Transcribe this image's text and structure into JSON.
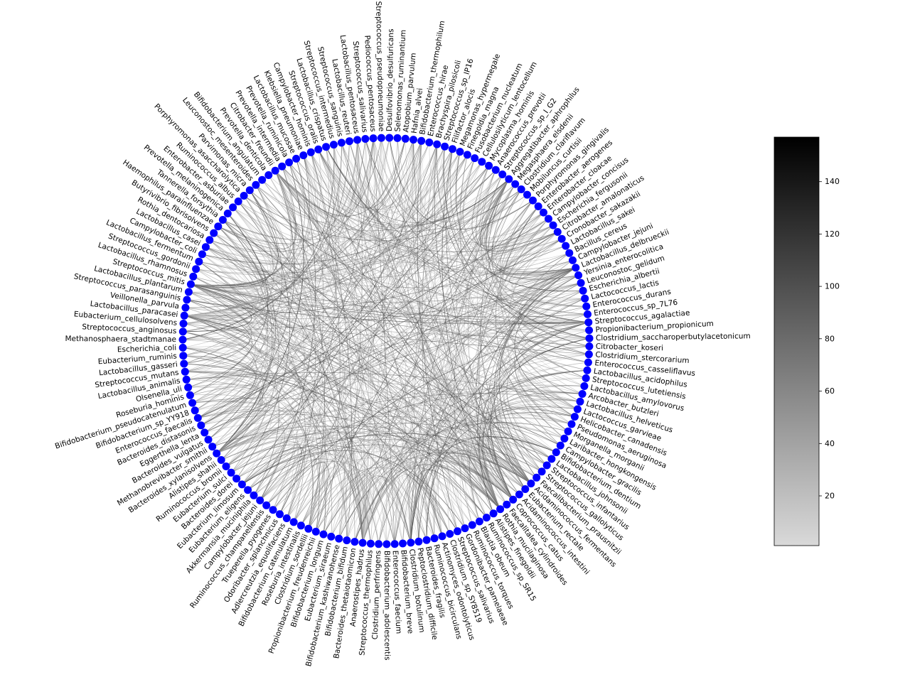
{
  "chart_data": {
    "type": "chord",
    "node_color": "#0000ff",
    "edge_colormap": "Greys",
    "colorbar": {
      "range": [
        1,
        157
      ],
      "ticks": [
        20,
        40,
        60,
        80,
        100,
        120,
        140
      ],
      "color_low": "#d9d9d9",
      "color_high": "#000000"
    },
    "nodes": [
      "Bifidobacterium_thermophilum",
      "Enterococcus_hirae",
      "Brachyspira_pilosicoli",
      "Streptococcus_sp_IP16",
      "Filifactor_alocis",
      "Megamonas_hypermegale",
      "Finegoldia_magna",
      "Fusobacterium_nucleatum",
      "Cellulosilyticum_lentocellum",
      "Mycoplasma_hominis",
      "Anaerococcus_prevotii",
      "Streptococcus_sp_I_G2",
      "Aggregatibacter_aphrophilus",
      "Megasphaera_elsdenii",
      "Clostridium_clariflavum",
      "Mobiluncus_curtisii",
      "Porphyromonas_gingivalis",
      "Enterobacter_aerogenes",
      "Enterobacter_cloacae",
      "Campylobacter_concisus",
      "Escherichia_fergusonii",
      "Citrobacter_amalonaticus",
      "Cronobacter_sakazakii",
      "Lactobacillus_sakei",
      "Bacillus_cereus",
      "Campylobacter_jejuni",
      "Lactobacillus_delbrueckii",
      "Yersinia_enterocolitica",
      "Leuconostoc_gelidum",
      "Escherichia_albertii",
      "Lactococcus_lactis",
      "Enterococcus_durans",
      "Enterococcus_sp_7L76",
      "Streptococcus_agalactiae",
      "Propionibacterium_propionicum",
      "Clostridium_saccharoperbutylacetonicum",
      "Citrobacter_koseri",
      "Clostridium_stercorarium",
      "Enterococcus_casseliflavus",
      "Lactobacillus_acidophilus",
      "Streptococcus_lutetiensis",
      "Lactobacillus_amylovorus",
      "Arcobacter_butzleri",
      "Lactobacillus_helveticus",
      "Lactococcus_garvieae",
      "Helicobacter_canadensis",
      "Pseudomonas_aeruginosa",
      "Morganella_morganii",
      "Laribacter_hongkongensis",
      "Campylobacter_gracilis",
      "Bifidobacterium_dentium",
      "Lactobacillus_johnsonii",
      "Streptococcus_infantarius",
      "Streptococcus_gallolyticus",
      "Faecalibacterium_prausnitzii",
      "Acidaminococcus_fermentans",
      "Eubacterium_rectale",
      "Acidaminococcus_intestini",
      "Coprococcus_catus",
      "Faecalitalea_cylindroides",
      "Rothia_mucilaginosa",
      "Alistipes_finegoldii",
      "Ruminococcus_sp_SR15",
      "Blautia_obeum",
      "Ruminococcus_torques",
      "Gordonibacter_pamelaeae",
      "Streptococcus_salivarius",
      "Clostridium_sp_SY8519",
      "Actinomyces_odontolyticus",
      "Ruminococcus_bicirculans",
      "Bacteroides_fragilis",
      "Peptoclostridium_difficile",
      "Clostridium_botulinum",
      "Bifidobacterium_breve",
      "Enterococcus_faecium",
      "Bifidobacterium_adolescentis",
      "Clostridium_perfringens",
      "Streptococcus_thermophilus",
      "Anaerostipes_hadrus",
      "Bacteroides_thetaiotaomicron",
      "Bifidobacterium_bifidum",
      "Bifidobacterium_kashiwanohense",
      "Eubacterium_siraeum",
      "Bifidobacterium_longum",
      "Propionibacterium_freudenreichii",
      "Clostridium_sordellii",
      "Roseburia_intestinalis",
      "Bifidobacterium_catenulatum",
      "Adlercreutzia_equolifaciens",
      "Odoribacter_splanchnicus",
      "Trueperella_pyogenes",
      "Ruminococcus_champanellensis",
      "Campylobacter_jejuni",
      "Akkermansia_muciniphila",
      "Eubacterium_eligens",
      "Eubacterium_limosum",
      "Bacteroides_dorei",
      "Eubacterium_sulci",
      "Ruminococcus_bromii",
      "Alistipes_shahii",
      "Bacteroides_xylanisolvens",
      "Methanobrevibacter_smithii",
      "Bacteroides_vulgatus",
      "Eggerthella_lenta",
      "Bacteroides_distasonis",
      "Enterococcus_faecalis",
      "Bifidobacterium_sp_YY918",
      "Bifidobacterium_pseudocatenulatum",
      "Roseburia_hominis",
      "Olsenella_uli",
      "Lactobacillus_animalis",
      "Streptococcus_mutans",
      "Lactobacillus_gasseri",
      "Eubacterium_ruminis",
      "Escherichia_coli",
      "Methanosphaera_stadtmanae",
      "Streptococcus_anginosus",
      "Eubacterium_cellulosolvens",
      "Lactobacillus_paracasei",
      "Veillonella_parvula",
      "Streptococcus_parasanguinis",
      "Lactobacillus_plantarum",
      "Streptococcus_mitis",
      "Lactobacillus_rhamnosus",
      "Streptococcus_gordonii",
      "Lactobacillus_fermentum",
      "Campylobacter_coli",
      "Lactobacillus_casei",
      "Rothia_dentocariosa",
      "Butyrivibrio_fibrisolvens",
      "Haemophilus_parainfluenzae",
      "Tannerella_forsythia",
      "Prevotella_melaninogenica",
      "Enterobacter_asburiae",
      "Ruminococcus_albus",
      "Porphyromonas_asaccharolytica",
      "Parvimonas_micra",
      "Leuconostoc_mesenteroides",
      "Bifidobacterium_angulatum",
      "Prevotella_denticola",
      "Citrobacter_freundii",
      "Prevotella_intermedia",
      "Prevotella_ruminicola",
      "Lactobacillus_mucosae",
      "Klebsiella_pneumoniae",
      "Campylobacter_hominis",
      "Streptococcus_oralis",
      "Lactobacillus_crispatus",
      "Streptococcus_intermedius",
      "Streptococcus_sanguinis",
      "Lactobacillus_reuteri",
      "Lactobacillus_pentosaceus",
      "Streptococcus_salivarius",
      "Pediococcus_pentosaceus",
      "Streptococcus_pseudopneumoniae",
      "Desulfovibrio_desulfuricans",
      "Selenomonas_ruminantium",
      "Atopobium_parvulum",
      "Hafnia_alvei"
    ]
  }
}
